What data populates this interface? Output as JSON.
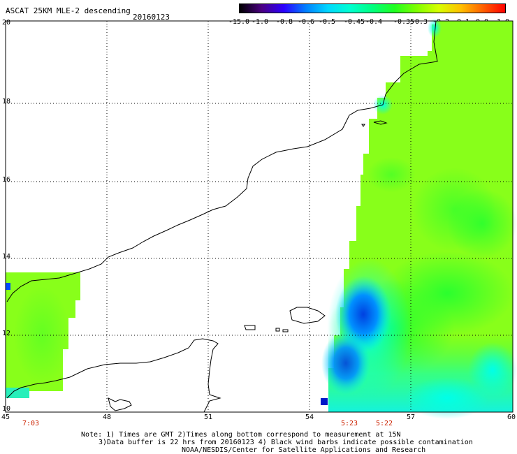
{
  "header": {
    "title": "ASCAT 25KM MLE-2 descending",
    "date": "20160123"
  },
  "colorbar": {
    "labels": [
      "-15.0",
      "-1.0",
      "-0.8",
      "-0.6",
      "-0.5",
      "-0.45",
      "-0.4",
      "-0.35",
      "-0.3",
      "-0.2",
      "-0.1",
      "0.0",
      "1.0"
    ],
    "colors": [
      "#000000",
      "#4b0082",
      "#2b00ff",
      "#0080ff",
      "#00d8ff",
      "#00ffd0",
      "#00ff80",
      "#20ff20",
      "#80ff00",
      "#d8ff00",
      "#ffc000",
      "#ff6000",
      "#ff0000"
    ]
  },
  "map": {
    "lat_labels": [
      "20",
      "18",
      "16",
      "14",
      "12",
      "10"
    ],
    "lon_labels": [
      "45",
      "48",
      "51",
      "54",
      "57",
      "60"
    ],
    "times": [
      "7:03",
      "5:23",
      "5:22"
    ],
    "extent": {
      "lon": [
        45,
        60
      ],
      "lat": [
        10,
        20
      ]
    }
  },
  "footer": {
    "note1": "Note: 1) Times are GMT 2)Times along bottom correspond to measurement at 15N",
    "note2": "3)Data buffer is 22 hrs from 20160123 4) Black wind barbs indicate possible contamination",
    "credit": "NOAA/NESDIS/Center for Satellite Applications and Research"
  }
}
